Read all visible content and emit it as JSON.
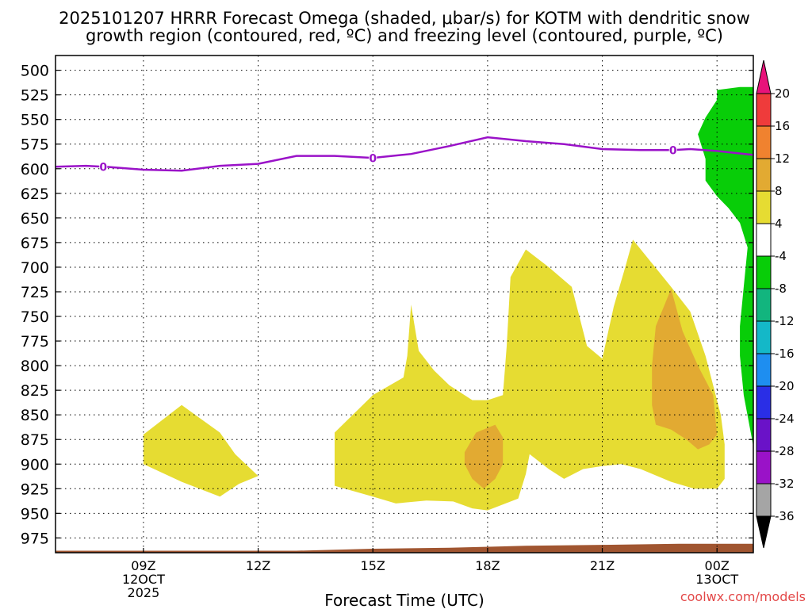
{
  "chart_data": {
    "type": "contour",
    "title_line1": "2025101207 HRRR Forecast Omega (shaded, μbar/s) for KOTM with dendritic snow",
    "title_line2": "growth region (contoured, red, ºC) and freezing level (contoured, purple, ºC)",
    "xlabel": "Forecast Time (UTC)",
    "credit": "coolwx.com/models",
    "x_range_hours": [
      6.7,
      24.95
    ],
    "y_range_mb": [
      485,
      990
    ],
    "y_ticks": [
      500,
      525,
      550,
      575,
      600,
      625,
      650,
      675,
      700,
      725,
      750,
      775,
      800,
      825,
      850,
      875,
      900,
      925,
      950,
      975
    ],
    "x_ticks": [
      {
        "hour": 9,
        "lines": [
          "09Z",
          "12OCT",
          "2025"
        ]
      },
      {
        "hour": 12,
        "lines": [
          "12Z"
        ]
      },
      {
        "hour": 15,
        "lines": [
          "15Z"
        ]
      },
      {
        "hour": 18,
        "lines": [
          "18Z"
        ]
      },
      {
        "hour": 21,
        "lines": [
          "21Z"
        ]
      },
      {
        "hour": 24,
        "lines": [
          "00Z",
          "13OCT"
        ]
      }
    ],
    "colorbar": {
      "labels": [
        "20",
        "16",
        "12",
        "8",
        "4",
        "-4",
        "-8",
        "-12",
        "-16",
        "-20",
        "-24",
        "-28",
        "-32",
        "-36"
      ],
      "colors": [
        "#e8137a",
        "#ef3b3b",
        "#f0822f",
        "#e2aa32",
        "#e6dc32",
        "#ffffff",
        "#08cd08",
        "#12b57e",
        "#14b8c8",
        "#1e8ef0",
        "#2a2ee6",
        "#6a12c8",
        "#9a12c8",
        "#a5a5a5",
        "#000000"
      ]
    },
    "freezing_level": {
      "label": "0",
      "color": "#9a12c8",
      "label_hours": [
        7.95,
        15,
        22.85
      ],
      "points": [
        [
          6.7,
          598
        ],
        [
          7.5,
          597
        ],
        [
          8,
          598
        ],
        [
          9,
          601
        ],
        [
          10,
          602
        ],
        [
          11,
          597
        ],
        [
          12,
          595
        ],
        [
          13,
          587
        ],
        [
          14,
          587
        ],
        [
          15,
          589
        ],
        [
          16,
          585
        ],
        [
          17,
          577
        ],
        [
          18,
          568
        ],
        [
          19,
          572
        ],
        [
          20,
          575
        ],
        [
          21,
          580
        ],
        [
          22,
          581
        ],
        [
          22.85,
          581
        ],
        [
          23.3,
          580
        ],
        [
          24,
          582
        ],
        [
          24.95,
          586
        ]
      ]
    },
    "omega_regions": [
      {
        "value": 4,
        "color": "#e6dc32",
        "points": [
          [
            9,
            870
          ],
          [
            10,
            840
          ],
          [
            11,
            868
          ],
          [
            11.4,
            890
          ],
          [
            12,
            912
          ],
          [
            11.5,
            920
          ],
          [
            11,
            933
          ],
          [
            10,
            918
          ],
          [
            9,
            900
          ]
        ]
      },
      {
        "value": 4,
        "color": "#e6dc32",
        "points": [
          [
            14,
            868
          ],
          [
            15,
            830
          ],
          [
            15.8,
            812
          ],
          [
            15.9,
            790
          ],
          [
            16,
            738
          ],
          [
            16.2,
            785
          ],
          [
            16.6,
            805
          ],
          [
            17,
            820
          ],
          [
            17.6,
            835
          ],
          [
            18,
            835
          ],
          [
            18.4,
            830
          ],
          [
            18.5,
            780
          ],
          [
            18.6,
            710
          ],
          [
            19,
            682
          ],
          [
            19.6,
            700
          ],
          [
            20.2,
            720
          ],
          [
            20.4,
            750
          ],
          [
            20.6,
            780
          ],
          [
            21,
            793
          ],
          [
            21.3,
            740
          ],
          [
            21.6,
            700
          ],
          [
            21.8,
            672
          ],
          [
            22.8,
            720
          ],
          [
            23.3,
            745
          ],
          [
            23.7,
            790
          ],
          [
            24.1,
            850
          ],
          [
            24.2,
            880
          ],
          [
            24.2,
            915
          ],
          [
            24,
            925
          ],
          [
            23.4,
            925
          ],
          [
            22.8,
            918
          ],
          [
            22,
            905
          ],
          [
            21.5,
            900
          ],
          [
            21,
            902
          ],
          [
            20.5,
            905
          ],
          [
            20,
            915
          ],
          [
            19.6,
            905
          ],
          [
            19.1,
            890
          ],
          [
            19,
            910
          ],
          [
            18.8,
            935
          ],
          [
            18,
            947
          ],
          [
            17.6,
            945
          ],
          [
            17.1,
            938
          ],
          [
            16.4,
            937
          ],
          [
            15.6,
            940
          ],
          [
            15,
            933
          ],
          [
            14,
            922
          ]
        ]
      },
      {
        "value": 8,
        "color": "#e2aa32",
        "points": [
          [
            17.4,
            888
          ],
          [
            17.7,
            868
          ],
          [
            18.2,
            860
          ],
          [
            18.4,
            873
          ],
          [
            18.4,
            900
          ],
          [
            18.2,
            915
          ],
          [
            17.9,
            925
          ],
          [
            17.6,
            915
          ],
          [
            17.4,
            900
          ]
        ]
      },
      {
        "value": 8,
        "color": "#e2aa32",
        "points": [
          [
            22.4,
            760
          ],
          [
            22.8,
            722
          ],
          [
            23.1,
            765
          ],
          [
            23.5,
            800
          ],
          [
            23.9,
            830
          ],
          [
            24,
            870
          ],
          [
            23.8,
            880
          ],
          [
            23.5,
            885
          ],
          [
            23.2,
            875
          ],
          [
            22.8,
            865
          ],
          [
            22.4,
            860
          ],
          [
            22.3,
            840
          ],
          [
            22.3,
            800
          ]
        ]
      },
      {
        "value": -4,
        "color": "#08cd08",
        "points": [
          [
            24.0,
            520
          ],
          [
            24.6,
            517
          ],
          [
            24.95,
            517
          ],
          [
            24.95,
            882
          ],
          [
            24.7,
            830
          ],
          [
            24.6,
            790
          ],
          [
            24.6,
            760
          ],
          [
            24.7,
            720
          ],
          [
            24.8,
            680
          ],
          [
            24.6,
            655
          ],
          [
            24.3,
            640
          ],
          [
            24.0,
            628
          ],
          [
            23.7,
            612
          ],
          [
            23.7,
            590
          ],
          [
            23.5,
            565
          ],
          [
            23.7,
            548
          ],
          [
            24.0,
            530
          ]
        ]
      }
    ],
    "ground": {
      "color": "#a05530",
      "points": [
        [
          6.7,
          988
        ],
        [
          13,
          988
        ],
        [
          15,
          986
        ],
        [
          17,
          985
        ],
        [
          19,
          983
        ],
        [
          21,
          982
        ],
        [
          23,
          981
        ],
        [
          24.95,
          981
        ]
      ]
    }
  }
}
